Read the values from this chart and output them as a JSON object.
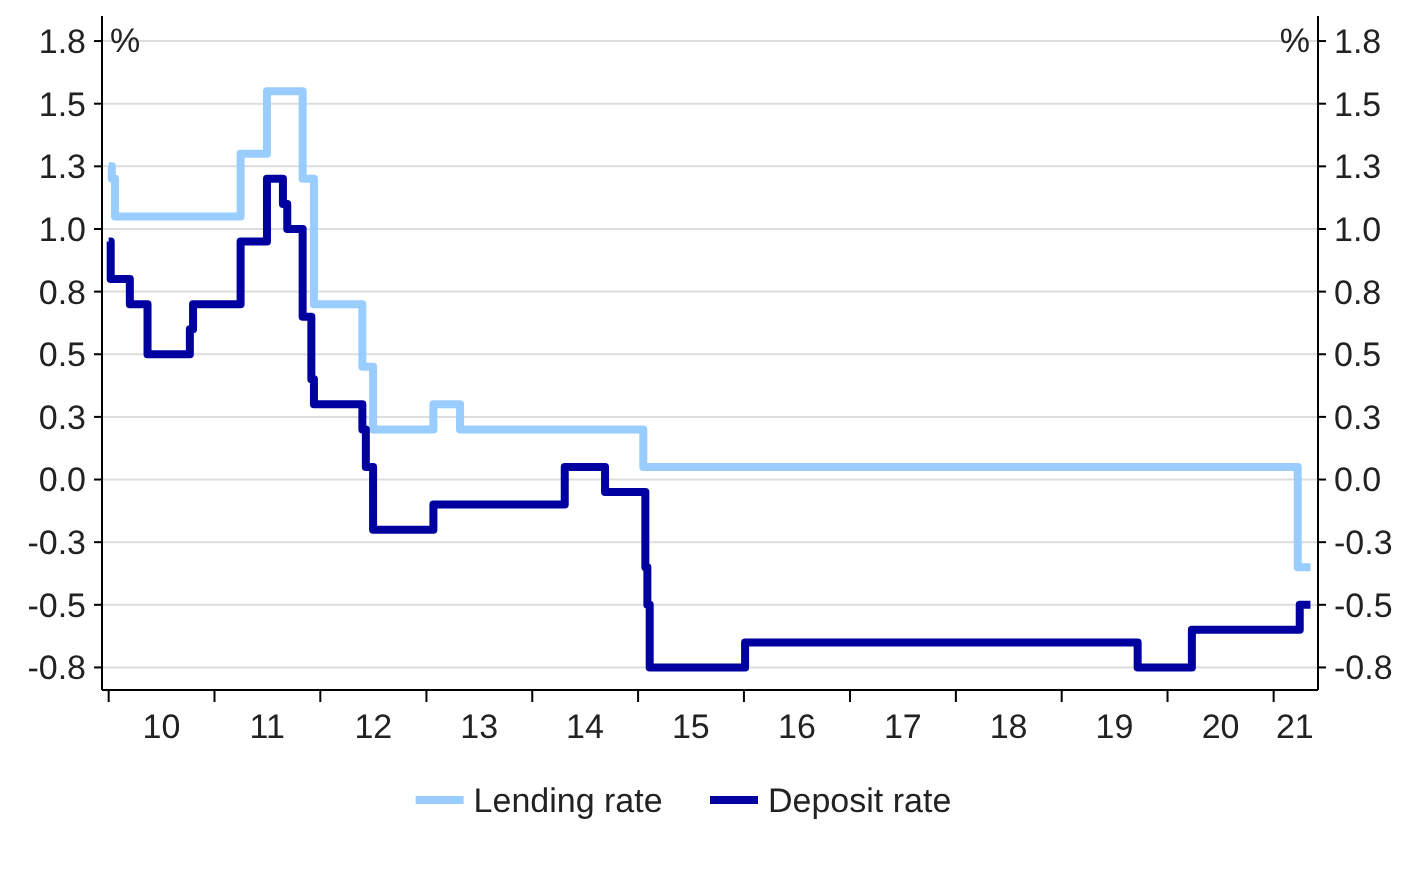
{
  "chart_data": {
    "type": "step",
    "ylabel": "%",
    "y2label": "%",
    "xlim": [
      "2009-12-09",
      "2021-06-03"
    ],
    "xticks": [
      {
        "value": "2010-01-01",
        "label": null
      },
      {
        "value": "2010-07-02",
        "label": "10"
      },
      {
        "value": "2011-01-01",
        "label": null
      },
      {
        "value": "2011-07-02",
        "label": "11"
      },
      {
        "value": "2012-01-01",
        "label": null
      },
      {
        "value": "2012-07-02",
        "label": "12"
      },
      {
        "value": "2013-01-01",
        "label": null
      },
      {
        "value": "2013-07-02",
        "label": "13"
      },
      {
        "value": "2014-01-01",
        "label": null
      },
      {
        "value": "2014-07-02",
        "label": "14"
      },
      {
        "value": "2015-01-01",
        "label": null
      },
      {
        "value": "2015-07-02",
        "label": "15"
      },
      {
        "value": "2016-01-01",
        "label": null
      },
      {
        "value": "2016-07-02",
        "label": "16"
      },
      {
        "value": "2017-01-01",
        "label": null
      },
      {
        "value": "2017-07-02",
        "label": "17"
      },
      {
        "value": "2018-01-01",
        "label": null
      },
      {
        "value": "2018-07-02",
        "label": "18"
      },
      {
        "value": "2019-01-01",
        "label": null
      },
      {
        "value": "2019-07-02",
        "label": "19"
      },
      {
        "value": "2020-01-01",
        "label": null
      },
      {
        "value": "2020-07-02",
        "label": "20"
      },
      {
        "value": "2021-01-01",
        "label": null
      },
      {
        "value": "2021-03-15",
        "label": "21"
      }
    ],
    "ylim": [
      -0.84,
      1.85
    ],
    "yticks": [
      {
        "value": -0.75,
        "label": "-0.8"
      },
      -0.5,
      {
        "value": -0.25,
        "label": "-0.3"
      },
      {
        "value": 0,
        "label": "0.0"
      },
      {
        "value": 0.25,
        "label": "0.3"
      },
      0.5,
      {
        "value": 0.75,
        "label": "0.8"
      },
      {
        "value": 1,
        "label": "1.0"
      },
      {
        "value": 1.25,
        "label": "1.3"
      },
      1.5,
      {
        "value": 1.75,
        "label": "1.8"
      }
    ],
    "y2lim": [
      -0.84,
      1.85
    ],
    "y2ticks": [
      {
        "value": -0.75,
        "label": "-0.8"
      },
      -0.5,
      {
        "value": -0.25,
        "label": "-0.3"
      },
      {
        "value": 0,
        "label": "0.0"
      },
      {
        "value": 0.25,
        "label": "0.3"
      },
      0.5,
      {
        "value": 0.75,
        "label": "0.8"
      },
      {
        "value": 1,
        "label": "1.0"
      },
      {
        "value": 1.25,
        "label": "1.3"
      },
      1.5,
      {
        "value": 1.75,
        "label": "1.8"
      }
    ],
    "grid": "y",
    "legend": "bottom",
    "line_style": "solid",
    "series": [
      {
        "name": "Lending rate",
        "color": "#99ccff",
        "x": [
          "2010-01-01",
          "2010-01-12",
          "2010-01-23",
          "2011-04-01",
          "2011-07-01",
          "2011-11-01",
          "2011-12-10",
          "2012-05-25",
          "2012-07-01",
          "2013-01-25",
          "2013-04-27",
          "2015-01-19",
          "2021-03-25",
          "2021-05-08"
        ],
        "values": [
          1.25,
          1.2,
          1.05,
          1.3,
          1.55,
          1.2,
          0.7,
          0.45,
          0.2,
          0.3,
          0.2,
          0.05,
          -0.35,
          -0.35
        ]
      },
      {
        "name": "Deposit rate",
        "color": "#0000a0",
        "x": [
          "2010-01-01",
          "2010-01-08",
          "2010-03-15",
          "2010-05-15",
          "2010-10-08",
          "2010-10-19",
          "2011-04-01",
          "2011-07-01",
          "2011-08-25",
          "2011-09-09",
          "2011-11-01",
          "2011-12-01",
          "2011-12-10",
          "2012-05-25",
          "2012-06-06",
          "2012-07-01",
          "2013-01-25",
          "2014-04-23",
          "2014-09-09",
          "2015-01-19",
          "2015-01-26",
          "2015-02-02",
          "2015-02-10",
          "2016-01-05",
          "2019-09-20",
          "2020-03-25",
          "2021-04-01",
          "2021-05-08"
        ],
        "values": [
          0.95,
          0.8,
          0.7,
          0.5,
          0.6,
          0.7,
          0.95,
          1.2,
          1.1,
          1.0,
          0.65,
          0.4,
          0.3,
          0.2,
          0.05,
          -0.2,
          -0.1,
          0.05,
          -0.05,
          -0.05,
          -0.35,
          -0.5,
          -0.75,
          -0.65,
          -0.75,
          -0.6,
          -0.5,
          -0.5
        ]
      }
    ]
  }
}
